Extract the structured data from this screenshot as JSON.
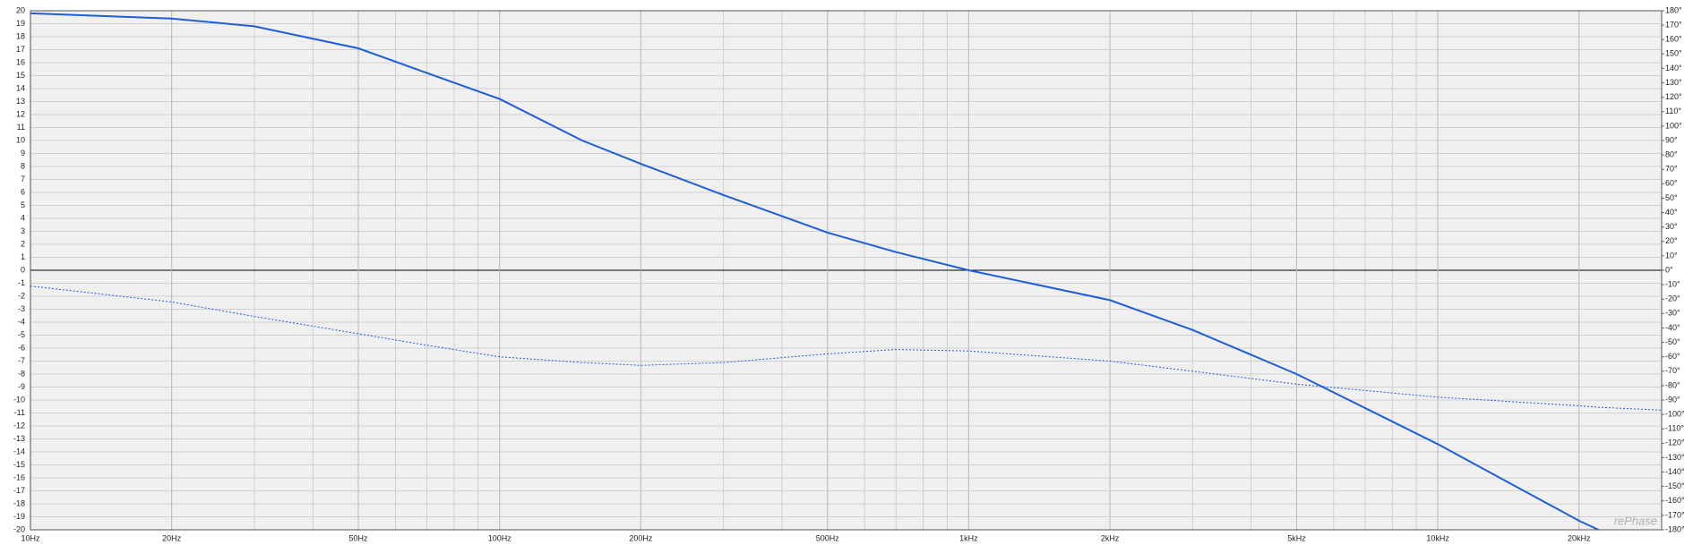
{
  "chart_data": {
    "type": "line",
    "x": [
      10,
      20,
      30,
      50,
      70,
      100,
      150,
      200,
      300,
      500,
      700,
      1000,
      2000,
      3000,
      5000,
      10000,
      20000,
      22000,
      30000
    ],
    "series": [
      {
        "color": "#1f5fd6",
        "style": "solid",
        "axis": "y",
        "values": [
          19.8,
          19.4,
          18.8,
          17.1,
          15.2,
          13.2,
          10.0,
          8.2,
          5.8,
          2.9,
          1.4,
          0.0,
          -2.3,
          -4.6,
          -8.0,
          -13.4,
          -19.3,
          -20.0,
          null
        ]
      },
      {
        "color": "#1f5fd6",
        "style": "dashed",
        "axis": "y2",
        "values": [
          -11,
          -22,
          -32,
          -44,
          -52,
          -60,
          -64,
          -66,
          -64,
          -58,
          -55,
          -56,
          -63,
          -70,
          -79,
          -88,
          -94,
          -95,
          -97
        ]
      }
    ],
    "xscale": "log",
    "xlim": [
      10,
      30000
    ],
    "xticks": [
      {
        "value": 10,
        "label": "10Hz"
      },
      {
        "value": 20,
        "label": "20Hz"
      },
      {
        "value": 50,
        "label": "50Hz"
      },
      {
        "value": 100,
        "label": "100Hz"
      },
      {
        "value": 200,
        "label": "200Hz"
      },
      {
        "value": 500,
        "label": "500Hz"
      },
      {
        "value": 1000,
        "label": "1kHz"
      },
      {
        "value": 2000,
        "label": "2kHz"
      },
      {
        "value": 5000,
        "label": "5kHz"
      },
      {
        "value": 10000,
        "label": "10kHz"
      },
      {
        "value": 20000,
        "label": "20kHz"
      }
    ],
    "ylim": [
      -20,
      20
    ],
    "yticks": [
      20,
      19,
      18,
      17,
      16,
      15,
      14,
      13,
      12,
      11,
      10,
      9,
      8,
      7,
      6,
      5,
      4,
      3,
      2,
      1,
      0,
      -1,
      -2,
      -3,
      -4,
      -5,
      -6,
      -7,
      -8,
      -9,
      -10,
      -11,
      -12,
      -13,
      -14,
      -15,
      -16,
      -17,
      -18,
      -19,
      -20
    ],
    "y2lim": [
      -180,
      180
    ],
    "y2ticks": [
      {
        "value": 180,
        "label": "180°"
      },
      {
        "value": 170,
        "label": "170°"
      },
      {
        "value": 160,
        "label": "160°"
      },
      {
        "value": 150,
        "label": "150°"
      },
      {
        "value": 140,
        "label": "140°"
      },
      {
        "value": 130,
        "label": "130°"
      },
      {
        "value": 120,
        "label": "120°"
      },
      {
        "value": 110,
        "label": "110°"
      },
      {
        "value": 100,
        "label": "100°"
      },
      {
        "value": 90,
        "label": "90°"
      },
      {
        "value": 80,
        "label": "80°"
      },
      {
        "value": 70,
        "label": "70°"
      },
      {
        "value": 60,
        "label": "60°"
      },
      {
        "value": 50,
        "label": "50°"
      },
      {
        "value": 40,
        "label": "40°"
      },
      {
        "value": 30,
        "label": "30°"
      },
      {
        "value": 20,
        "label": "20°"
      },
      {
        "value": 10,
        "label": "10°"
      },
      {
        "value": 0,
        "label": "0°"
      },
      {
        "value": -10,
        "label": "-10°"
      },
      {
        "value": -20,
        "label": "-20°"
      },
      {
        "value": -30,
        "label": "-30°"
      },
      {
        "value": -40,
        "label": "-40°"
      },
      {
        "value": -50,
        "label": "-50°"
      },
      {
        "value": -60,
        "label": "-60°"
      },
      {
        "value": -70,
        "label": "-70°"
      },
      {
        "value": -80,
        "label": "-80°"
      },
      {
        "value": -90,
        "label": "-90°"
      },
      {
        "value": -100,
        "label": "-100°"
      },
      {
        "value": -110,
        "label": "-110°"
      },
      {
        "value": -120,
        "label": "-120°"
      },
      {
        "value": -130,
        "label": "-130°"
      },
      {
        "value": -140,
        "label": "-140°"
      },
      {
        "value": -150,
        "label": "-150°"
      },
      {
        "value": -160,
        "label": "-160°"
      },
      {
        "value": -170,
        "label": "-170°"
      },
      {
        "value": -180,
        "label": "-180°"
      }
    ],
    "grid": true,
    "watermark": "rePhase"
  }
}
